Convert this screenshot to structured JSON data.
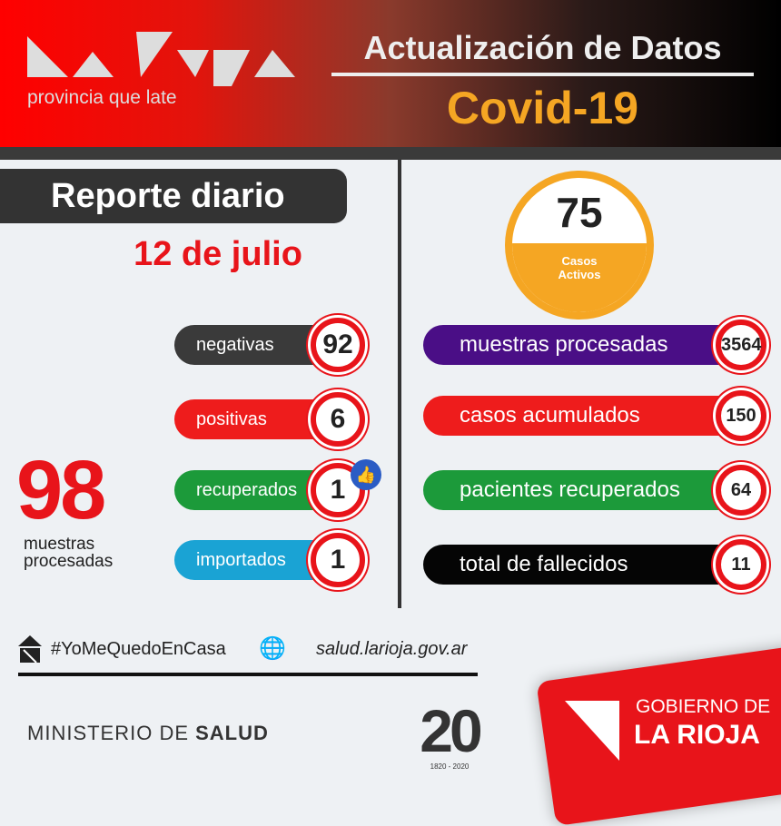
{
  "header": {
    "logo_alt": "La Rioja",
    "logo_tagline": "provincia que late",
    "title": "Actualización de Datos",
    "subtitle": "Covid-19"
  },
  "left": {
    "report_title": "Reporte diario",
    "date": "12 de julio",
    "total_value": "98",
    "total_label_1": "muestras",
    "total_label_2": "procesadas",
    "items": [
      {
        "label": "negativas",
        "value": "92",
        "color": "#3a3a3a"
      },
      {
        "label": "positivas",
        "value": "6",
        "color": "#ee1c1c"
      },
      {
        "label": "recuperados",
        "value": "1",
        "color": "#1c9a3a"
      },
      {
        "label": "importados",
        "value": "1",
        "color": "#1aa3d4"
      }
    ]
  },
  "right": {
    "active_value": "75",
    "active_label_1": "Casos",
    "active_label_2": "Activos",
    "accent": "#f5a623",
    "items": [
      {
        "label": "muestras procesadas",
        "value": "3564",
        "color": "#4a0e86"
      },
      {
        "label": "casos acumulados",
        "value": "150",
        "color": "#ee1c1c"
      },
      {
        "label": "pacientes recuperados",
        "value": "64",
        "color": "#1c9a3a"
      },
      {
        "label": "total de fallecidos",
        "value": "11",
        "color": "#050505"
      }
    ]
  },
  "footer": {
    "hashtag": "#YoMeQuedoEnCasa",
    "website": "salud.larioja.gov.ar",
    "ministry_light": "MINISTERIO DE ",
    "ministry_bold": "SALUD",
    "bicentenary": "20",
    "bicentenary_years": "1820 - 2020",
    "gov_line1": "GOBIERNO DE",
    "gov_line2": "LA RIOJA"
  }
}
